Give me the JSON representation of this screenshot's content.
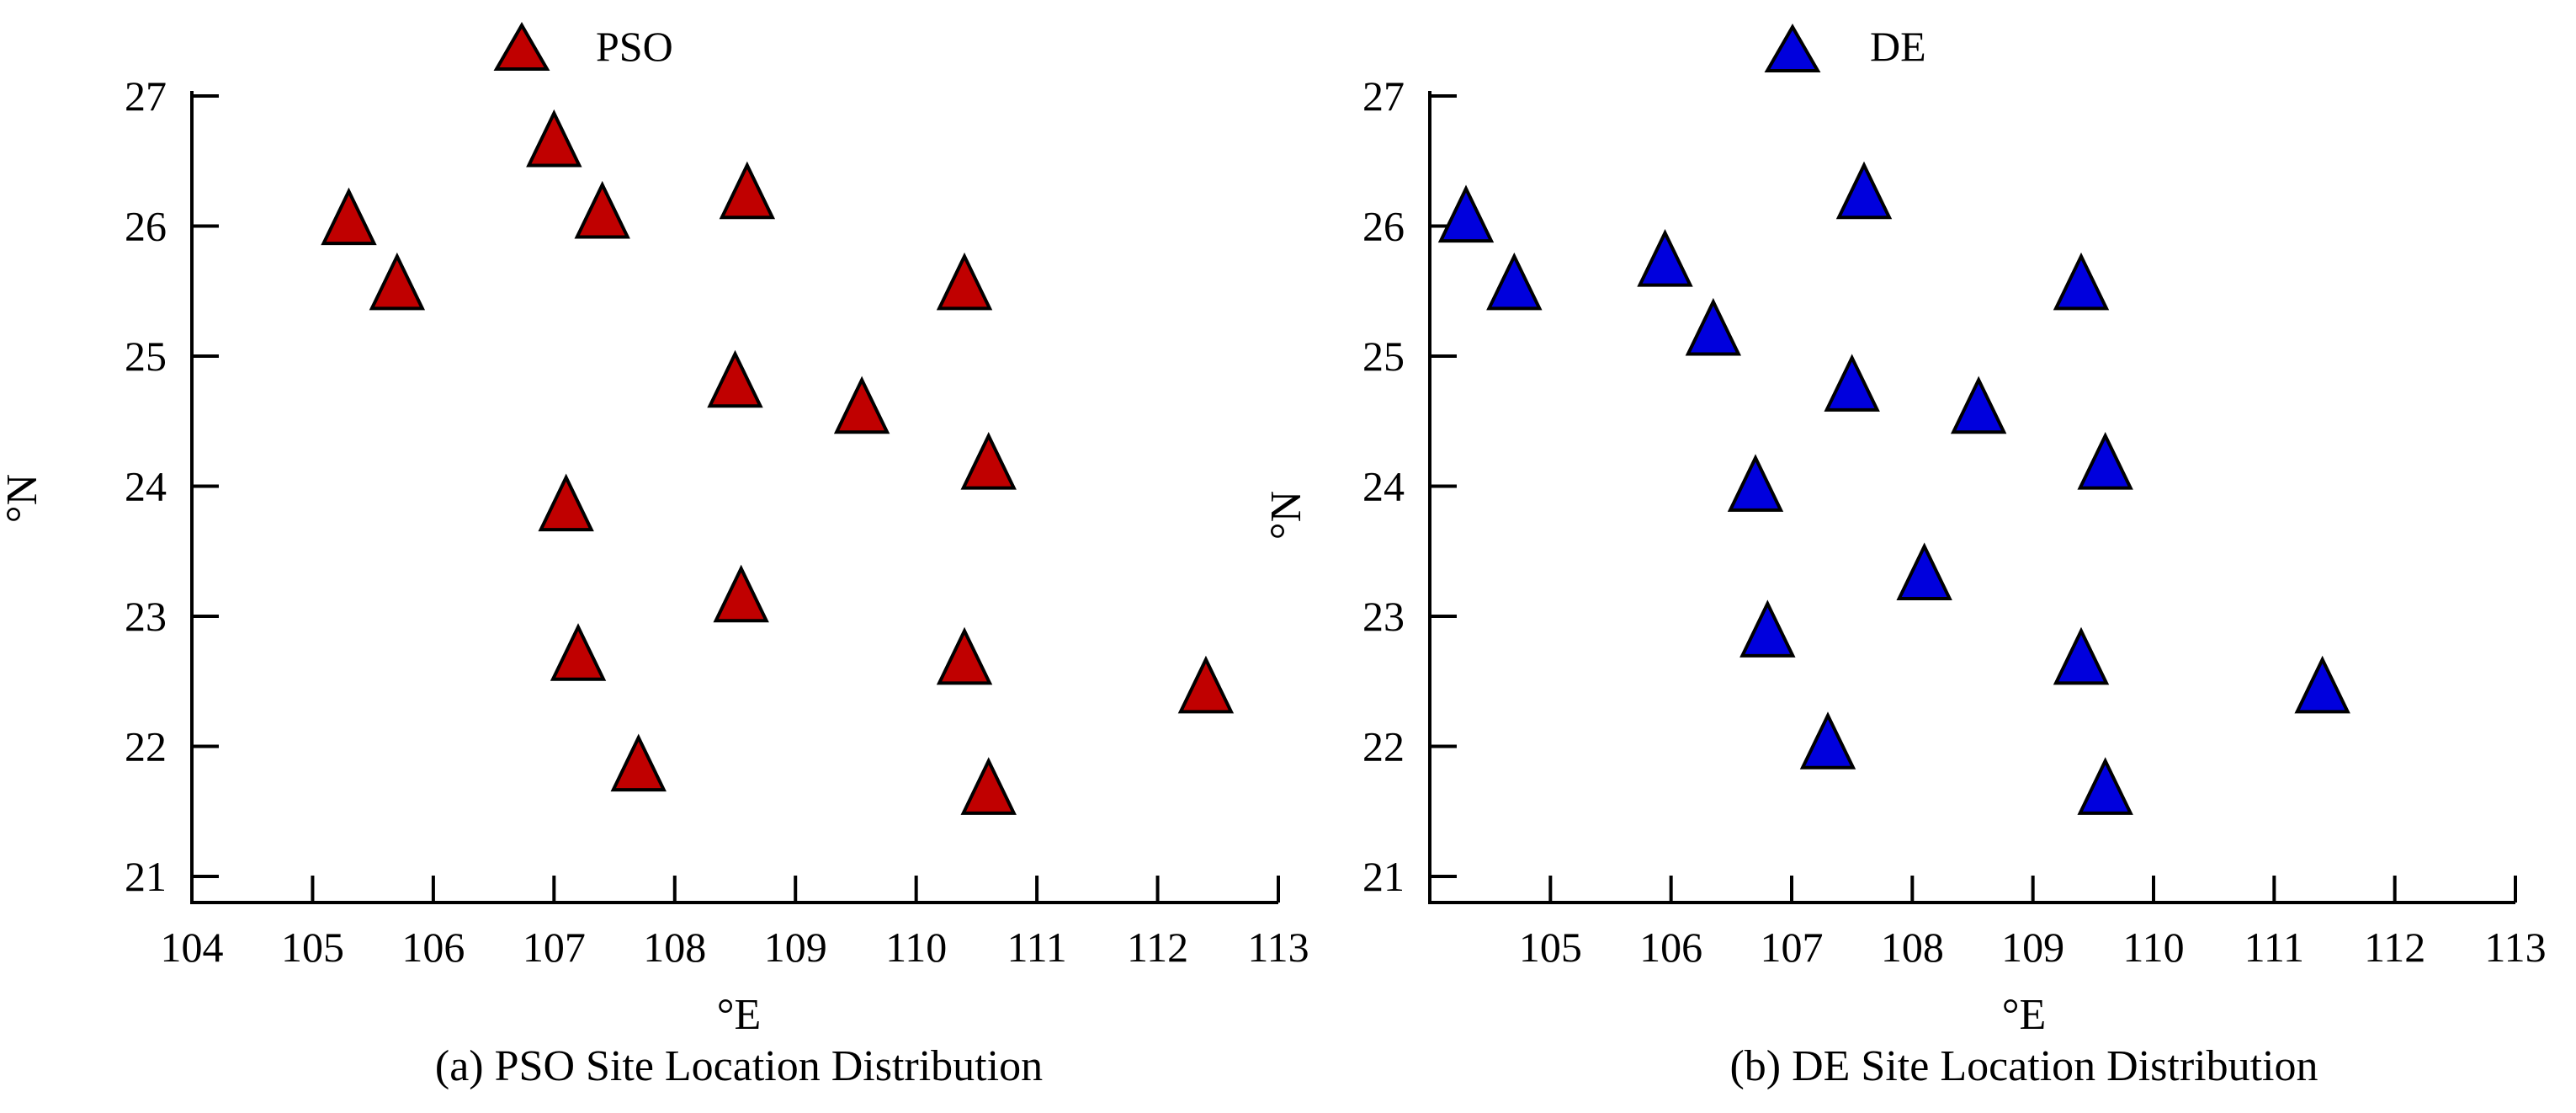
{
  "chart_data": [
    {
      "type": "scatter",
      "panel": "a",
      "caption": "(a) PSO Site Location Distribution",
      "xlabel": "°E",
      "ylabel": "°N",
      "xlim": [
        104,
        113
      ],
      "ylim": [
        20.8,
        27.1
      ],
      "xticks": [
        104,
        105,
        106,
        107,
        108,
        109,
        110,
        111,
        112,
        113
      ],
      "yticks": [
        21,
        22,
        23,
        24,
        25,
        26,
        27
      ],
      "legend": "top-center",
      "grid": false,
      "series": [
        {
          "name": "PSO",
          "marker": "triangle",
          "color": "#c00000",
          "points": [
            {
              "x": 105.3,
              "y": 26.0
            },
            {
              "x": 105.7,
              "y": 25.5
            },
            {
              "x": 107.0,
              "y": 26.6
            },
            {
              "x": 107.4,
              "y": 26.05
            },
            {
              "x": 108.6,
              "y": 26.2
            },
            {
              "x": 110.4,
              "y": 25.5
            },
            {
              "x": 108.5,
              "y": 24.75
            },
            {
              "x": 109.55,
              "y": 24.55
            },
            {
              "x": 110.6,
              "y": 24.12
            },
            {
              "x": 107.1,
              "y": 23.8
            },
            {
              "x": 108.55,
              "y": 23.1
            },
            {
              "x": 107.2,
              "y": 22.65
            },
            {
              "x": 110.4,
              "y": 22.62
            },
            {
              "x": 112.4,
              "y": 22.4
            },
            {
              "x": 107.7,
              "y": 21.8
            },
            {
              "x": 110.6,
              "y": 21.62
            }
          ]
        }
      ]
    },
    {
      "type": "scatter",
      "panel": "b",
      "caption": "(b) DE Site Location Distribution",
      "xlabel": "°E",
      "ylabel": "°N",
      "xlim": [
        104,
        113
      ],
      "ylim": [
        20.8,
        27.1
      ],
      "xticks": [
        105,
        106,
        107,
        108,
        109,
        110,
        111,
        112,
        113
      ],
      "yticks": [
        21,
        22,
        23,
        24,
        25,
        26,
        27
      ],
      "legend": "top-center",
      "grid": false,
      "series": [
        {
          "name": "DE",
          "marker": "triangle",
          "color": "#0000dd",
          "points": [
            {
              "x": 104.3,
              "y": 26.02
            },
            {
              "x": 104.7,
              "y": 25.5
            },
            {
              "x": 105.95,
              "y": 25.68
            },
            {
              "x": 106.35,
              "y": 25.15
            },
            {
              "x": 107.6,
              "y": 26.2
            },
            {
              "x": 109.4,
              "y": 25.5
            },
            {
              "x": 107.5,
              "y": 24.72
            },
            {
              "x": 108.55,
              "y": 24.55
            },
            {
              "x": 109.6,
              "y": 24.12
            },
            {
              "x": 106.7,
              "y": 23.95
            },
            {
              "x": 108.1,
              "y": 23.27
            },
            {
              "x": 106.8,
              "y": 22.83
            },
            {
              "x": 109.4,
              "y": 22.62
            },
            {
              "x": 111.4,
              "y": 22.4
            },
            {
              "x": 107.3,
              "y": 21.97
            },
            {
              "x": 109.6,
              "y": 21.62
            }
          ]
        }
      ]
    }
  ]
}
